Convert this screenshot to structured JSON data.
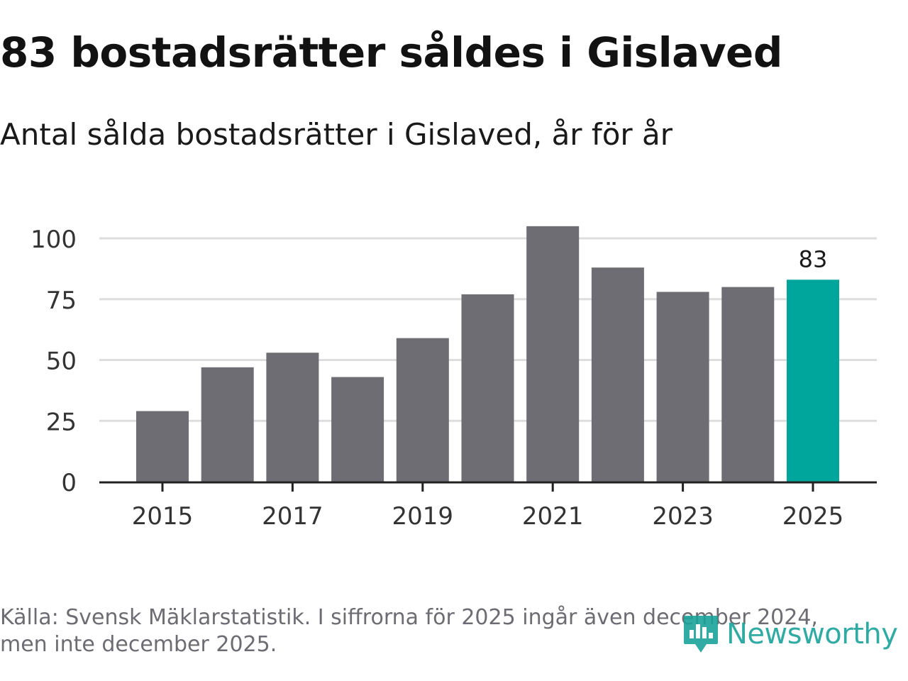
{
  "header": {
    "title": "83 bostadsrätter såldes i Gislaved",
    "subtitle": "Antal sålda bostadsrätter i Gislaved, år för år"
  },
  "chart_data": {
    "type": "bar",
    "title": "83 bostadsrätter såldes i Gislaved",
    "subtitle": "Antal sålda bostadsrätter i Gislaved, år för år",
    "xlabel": "",
    "ylabel": "",
    "categories": [
      "2015",
      "2016",
      "2017",
      "2018",
      "2019",
      "2020",
      "2021",
      "2022",
      "2023",
      "2024",
      "2025"
    ],
    "values": [
      29,
      47,
      53,
      43,
      59,
      77,
      105,
      88,
      78,
      80,
      83
    ],
    "x_tick_labels": [
      "2015",
      "2017",
      "2019",
      "2021",
      "2023",
      "2025"
    ],
    "y_ticks": [
      0,
      25,
      50,
      75,
      100
    ],
    "ylim": [
      0,
      100
    ],
    "grid": true,
    "highlight": {
      "category": "2025",
      "label": "83"
    },
    "colors": {
      "bar": "#6e6d73",
      "highlight": "#00a59b",
      "grid": "#dddddd",
      "axis": "#222222",
      "tick_text": "#333333"
    }
  },
  "footer": {
    "source_line1": "Källa: Svensk Mäklarstatistik. I siffrorna för 2025 ingår även december 2024,",
    "source_line2": "men inte december 2025."
  },
  "brand": {
    "name": "Newsworthy",
    "icon": "newsworthy-logo-icon",
    "color": "#1aa39a"
  }
}
